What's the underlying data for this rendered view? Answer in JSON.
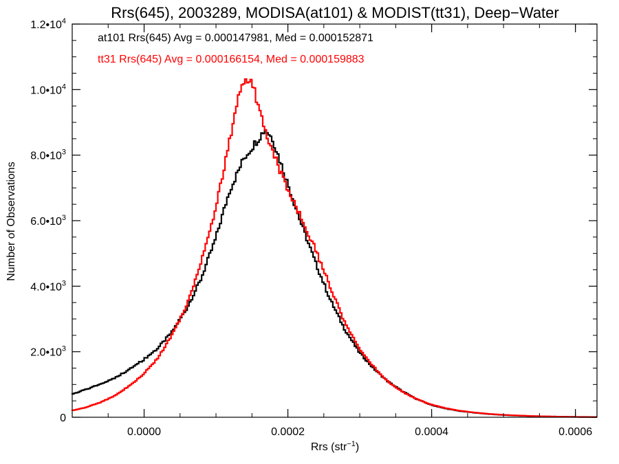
{
  "chart_data": {
    "type": "line",
    "title": "Rrs(645), 2003289, MODISA(at101) & MODIST(tt31), Deep−Water",
    "xlabel": {
      "base": "Rrs (str",
      "sup": "−1",
      "tail": ")"
    },
    "ylabel": "Number of Observations",
    "xlim": [
      -0.0001,
      0.00063
    ],
    "ylim": [
      0,
      12000
    ],
    "x_ticks": [
      {
        "value": 0.0,
        "label": "0.0000"
      },
      {
        "value": 0.0002,
        "label": "0.0002"
      },
      {
        "value": 0.0004,
        "label": "0.0004"
      },
      {
        "value": 0.0006,
        "label": "0.0006"
      }
    ],
    "y_ticks": [
      {
        "value": 0,
        "label": "0",
        "exp": ""
      },
      {
        "value": 2000,
        "label": "2.0•10",
        "exp": "3"
      },
      {
        "value": 4000,
        "label": "4.0•10",
        "exp": "3"
      },
      {
        "value": 6000,
        "label": "6.0•10",
        "exp": "3"
      },
      {
        "value": 8000,
        "label": "8.0•10",
        "exp": "3"
      },
      {
        "value": 10000,
        "label": "1.0•10",
        "exp": "4"
      },
      {
        "value": 12000,
        "label": "1.2•10",
        "exp": "4"
      }
    ],
    "annotations": [
      {
        "text": "at101 Rrs(645) Avg = 0.000147981, Med = 0.000152871",
        "color": "#000000"
      },
      {
        "text": "tt31 Rrs(645) Avg = 0.000166154, Med = 0.000159883",
        "color": "#ff0000"
      }
    ],
    "series": [
      {
        "color": "#000000",
        "x": [
          -0.0001,
          -8e-05,
          -6e-05,
          -4e-05,
          -2e-05,
          0.0,
          2e-05,
          4e-05,
          6e-05,
          8e-05,
          0.0001,
          0.00012,
          0.00014,
          0.00016,
          0.00017,
          0.00018,
          0.0002,
          0.00022,
          0.00024,
          0.00026,
          0.00028,
          0.0003,
          0.00032,
          0.00034,
          0.00036,
          0.00038,
          0.0004,
          0.00042,
          0.00044,
          0.00046,
          0.00048,
          0.0005,
          0.00052,
          0.00054,
          0.00056,
          0.00058,
          0.0006,
          0.00063
        ],
        "y": [
          700,
          850,
          1000,
          1200,
          1450,
          1750,
          2100,
          2600,
          3300,
          4200,
          5400,
          6900,
          7900,
          8500,
          8800,
          8500,
          7200,
          5900,
          4700,
          3600,
          2700,
          2000,
          1500,
          1100,
          800,
          560,
          380,
          270,
          190,
          140,
          100,
          70,
          50,
          35,
          25,
          18,
          12,
          8
        ]
      },
      {
        "color": "#ff0000",
        "x": [
          -0.0001,
          -8e-05,
          -6e-05,
          -4e-05,
          -2e-05,
          0.0,
          2e-05,
          4e-05,
          6e-05,
          8e-05,
          0.0001,
          0.00012,
          0.00013,
          0.00014,
          0.00015,
          0.00016,
          0.00018,
          0.0002,
          0.00022,
          0.00024,
          0.00026,
          0.00028,
          0.0003,
          0.00032,
          0.00034,
          0.00036,
          0.00038,
          0.0004,
          0.00042,
          0.00044,
          0.00046,
          0.00048,
          0.0005,
          0.00052,
          0.00054,
          0.00056,
          0.00058,
          0.0006,
          0.00063
        ],
        "y": [
          200,
          300,
          450,
          650,
          950,
          1300,
          1800,
          2500,
          3400,
          4700,
          6300,
          8400,
          9600,
          10300,
          10400,
          9500,
          8100,
          7000,
          6100,
          5100,
          4000,
          2900,
          2100,
          1550,
          1100,
          780,
          560,
          390,
          280,
          200,
          145,
          105,
          75,
          55,
          38,
          26,
          17,
          10,
          5
        ]
      }
    ]
  }
}
